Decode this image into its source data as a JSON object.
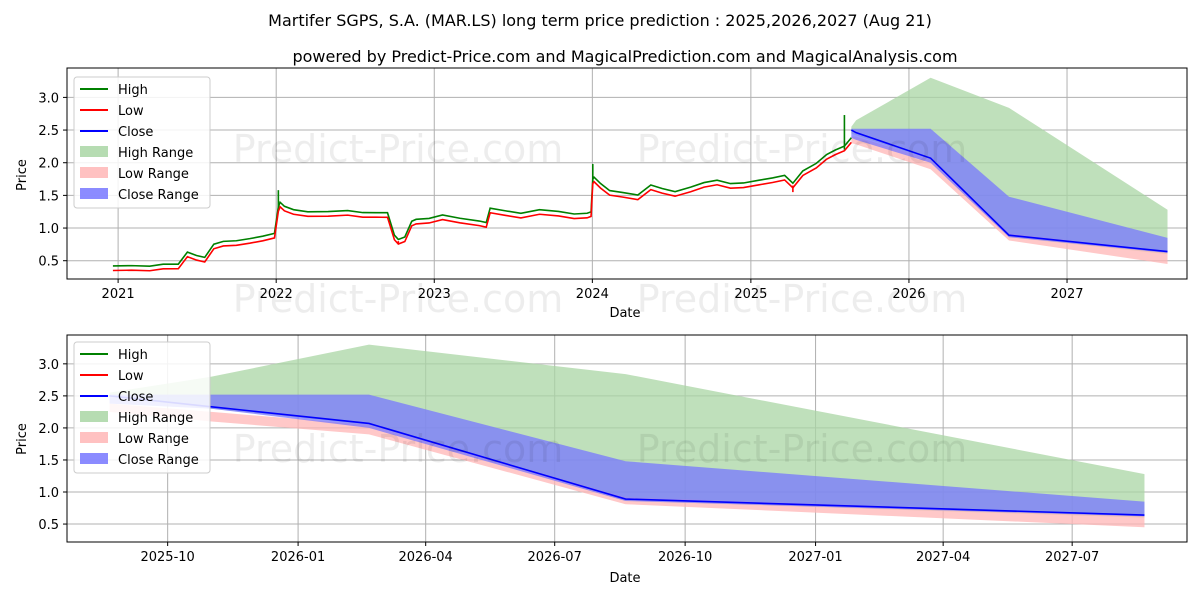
{
  "title": "Martifer SGPS, S.A. (MAR.LS) long term price prediction : 2025,2026,2027 (Aug 21)",
  "subtitle": "powered by Predict-Price.com and MagicalPrediction.com and MagicalAnalysis.com",
  "watermark": "Predict-Price.com",
  "colors": {
    "high": "#008000",
    "low": "#ff0000",
    "close": "#0000ff",
    "high_range": "#a9d6a4",
    "low_range": "#ffb6b6",
    "close_range": "#7777ff"
  },
  "legend": [
    "High",
    "Low",
    "Close",
    "High Range",
    "Low Range",
    "Close Range"
  ],
  "chart_data": [
    {
      "type": "line",
      "xlabel": "Date",
      "ylabel": "Price",
      "xlim": [
        "2020-09-05",
        "2027-10-05"
      ],
      "ylim": [
        0.22,
        3.45
      ],
      "xticks": [
        "2021",
        "2022",
        "2023",
        "2024",
        "2025",
        "2026",
        "2027"
      ],
      "yticks": [
        "0.5",
        "1.0",
        "1.5",
        "2.0",
        "2.5",
        "3.0"
      ],
      "legend_position": "upper-left",
      "grid": true,
      "history": {
        "dates": [
          "2020-12-20",
          "2021-02-01",
          "2021-03-15",
          "2021-04-15",
          "2021-05-20",
          "2021-06-10",
          "2021-07-01",
          "2021-07-20",
          "2021-08-10",
          "2021-09-01",
          "2021-10-01",
          "2021-11-01",
          "2021-12-01",
          "2021-12-28",
          "2022-01-06",
          "2022-01-10",
          "2022-01-20",
          "2022-02-10",
          "2022-03-15",
          "2022-05-01",
          "2022-06-15",
          "2022-07-20",
          "2022-08-20",
          "2022-09-15",
          "2022-10-01",
          "2022-10-10",
          "2022-10-25",
          "2022-11-10",
          "2022-11-20",
          "2022-12-20",
          "2023-01-20",
          "2023-03-01",
          "2023-04-15",
          "2023-05-01",
          "2023-05-10",
          "2023-06-15",
          "2023-07-20",
          "2023-09-01",
          "2023-10-15",
          "2023-11-20",
          "2023-12-20",
          "2023-12-29",
          "2024-01-02",
          "2024-01-05",
          "2024-01-20",
          "2024-02-10",
          "2024-03-10",
          "2024-04-15",
          "2024-05-15",
          "2024-06-10",
          "2024-07-10",
          "2024-08-15",
          "2024-09-15",
          "2024-10-15",
          "2024-11-15",
          "2024-12-15",
          "2025-01-20",
          "2025-02-20",
          "2025-03-20",
          "2025-04-08",
          "2025-05-01",
          "2025-06-01",
          "2025-06-25",
          "2025-07-15",
          "2025-08-05",
          "2025-08-21"
        ],
        "close": [
          0.38,
          0.37,
          0.38,
          0.42,
          0.4,
          0.58,
          0.55,
          0.52,
          0.7,
          0.75,
          0.78,
          0.8,
          0.82,
          0.88,
          1.3,
          1.35,
          1.28,
          1.25,
          1.22,
          1.2,
          1.22,
          1.21,
          1.2,
          1.18,
          0.85,
          0.8,
          0.82,
          1.05,
          1.1,
          1.12,
          1.15,
          1.1,
          1.08,
          1.05,
          1.25,
          1.22,
          1.2,
          1.24,
          1.2,
          1.18,
          1.2,
          1.2,
          1.7,
          1.75,
          1.65,
          1.52,
          1.5,
          1.48,
          1.62,
          1.55,
          1.52,
          1.6,
          1.65,
          1.68,
          1.65,
          1.66,
          1.68,
          1.72,
          1.78,
          1.65,
          1.82,
          1.95,
          2.1,
          2.15,
          2.2,
          2.35
        ],
        "high_spikes": [
          {
            "date": "2022-01-06",
            "value": 1.58
          },
          {
            "date": "2024-01-02",
            "value": 1.98
          },
          {
            "date": "2025-08-05",
            "value": 2.73
          }
        ],
        "low_dips": [
          {
            "date": "2022-10-10",
            "value": 0.76
          },
          {
            "date": "2025-04-08",
            "value": 1.55
          }
        ]
      },
      "forecast": {
        "dates": [
          "2025-08-21",
          "2025-09-01",
          "2026-02-20",
          "2026-08-20",
          "2027-08-21"
        ],
        "close": [
          2.5,
          2.46,
          2.07,
          0.89,
          0.64
        ],
        "high_range": [
          [
            2.45,
            2.55
          ],
          [
            2.42,
            2.65
          ],
          [
            2.05,
            3.3
          ],
          [
            0.86,
            2.84
          ],
          [
            0.6,
            1.28
          ]
        ],
        "low_range": [
          [
            2.3,
            2.4
          ],
          [
            2.28,
            2.4
          ],
          [
            1.9,
            2.05
          ],
          [
            0.81,
            0.92
          ],
          [
            0.45,
            0.64
          ]
        ],
        "close_range": [
          [
            2.38,
            2.52
          ],
          [
            2.35,
            2.52
          ],
          [
            2.0,
            2.52
          ],
          [
            0.86,
            1.48
          ],
          [
            0.62,
            0.85
          ]
        ]
      }
    },
    {
      "type": "line",
      "xlabel": "Date",
      "ylabel": "Price",
      "xlim": [
        "2025-07-22",
        "2027-09-20"
      ],
      "ylim": [
        0.22,
        3.45
      ],
      "xticks": [
        "2025-10",
        "2026-01",
        "2026-04",
        "2026-07",
        "2026-10",
        "2027-01",
        "2027-04",
        "2027-07"
      ],
      "yticks": [
        "0.5",
        "1.0",
        "1.5",
        "2.0",
        "2.5",
        "3.0"
      ],
      "legend_position": "upper-left",
      "grid": true,
      "forecast": {
        "dates": [
          "2025-08-21",
          "2025-11-01",
          "2026-02-20",
          "2026-08-20",
          "2027-08-21"
        ],
        "close": [
          2.5,
          2.33,
          2.07,
          0.89,
          0.64
        ],
        "high_range": [
          [
            2.5,
            2.55
          ],
          [
            2.3,
            2.8
          ],
          [
            2.05,
            3.3
          ],
          [
            0.86,
            2.84
          ],
          [
            0.6,
            1.28
          ]
        ],
        "low_range": [
          [
            2.25,
            2.38
          ],
          [
            2.1,
            2.25
          ],
          [
            1.9,
            2.05
          ],
          [
            0.81,
            0.92
          ],
          [
            0.45,
            0.64
          ]
        ],
        "close_range": [
          [
            2.38,
            2.52
          ],
          [
            2.3,
            2.52
          ],
          [
            2.0,
            2.52
          ],
          [
            0.86,
            1.48
          ],
          [
            0.62,
            0.85
          ]
        ]
      }
    }
  ]
}
